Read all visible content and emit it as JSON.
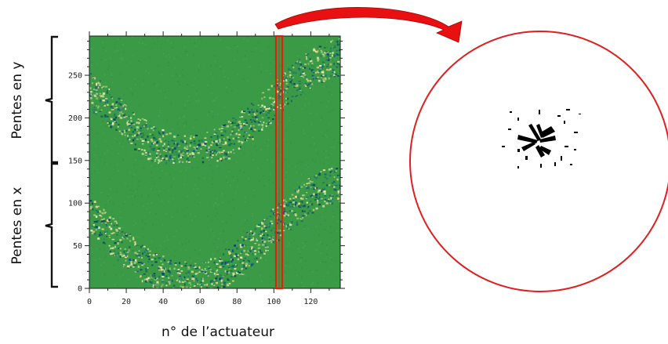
{
  "labels": {
    "y_group_top": "Pentes en y",
    "y_group_bottom": "Pentes en x",
    "x_axis": "n° de l’actuateur"
  },
  "colors": {
    "matrix_background": "#3a9a46",
    "highlight": "#e02010",
    "arrow": "#e81010",
    "pupil": "#e02020"
  },
  "chart_data": {
    "type": "heatmap",
    "xlim": [
      0,
      136
    ],
    "ylim": [
      0,
      296
    ],
    "x_ticks": [
      0,
      20,
      40,
      60,
      80,
      100,
      120
    ],
    "y_ticks": [
      0,
      50,
      100,
      150,
      200,
      250
    ],
    "x_tick_labels": [
      "0",
      "20",
      "40",
      "60",
      "80",
      "100",
      "120"
    ],
    "y_tick_labels": [
      "0",
      "50",
      "100",
      "150",
      "200",
      "250"
    ],
    "groups": [
      {
        "label": "Pentes en y",
        "range": [
          148,
          296
        ]
      },
      {
        "label": "Pentes en x",
        "range": [
          0,
          148
        ]
      }
    ],
    "highlighted_column": {
      "x_range": [
        101,
        104
      ]
    }
  }
}
